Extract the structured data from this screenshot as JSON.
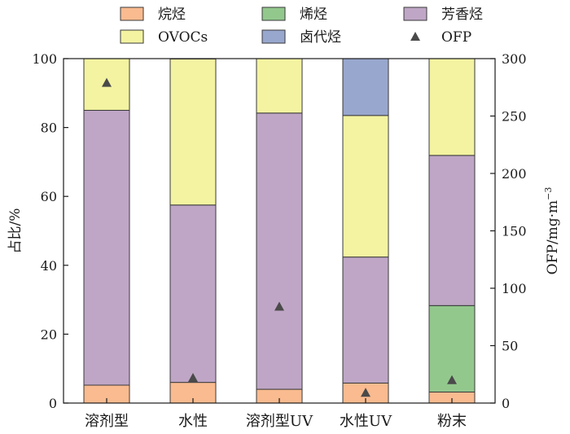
{
  "chart_data": {
    "type": "bar",
    "stacked": true,
    "categories": [
      "溶剂型",
      "水性",
      "溶剂型UV",
      "水性UV",
      "粉末"
    ],
    "series": [
      {
        "name": "烷烃",
        "color": "#f9bb8f",
        "values": [
          5.2,
          6.0,
          4.0,
          5.8,
          3.2
        ]
      },
      {
        "name": "烯烃",
        "color": "#93c88d",
        "values": [
          0,
          0,
          0,
          0,
          25.1
        ]
      },
      {
        "name": "芳香烃",
        "color": "#bfa6c6",
        "values": [
          79.8,
          51.5,
          80.2,
          36.6,
          43.6
        ]
      },
      {
        "name": "OVOCs",
        "color": "#f3f3a1",
        "values": [
          15.0,
          42.4,
          15.8,
          41.1,
          28.1
        ]
      },
      {
        "name": "卤代烃",
        "color": "#98a7cd",
        "values": [
          0,
          0,
          0,
          16.5,
          0
        ]
      }
    ],
    "ofp_series": {
      "name": "OFP",
      "marker": "triangle",
      "color": "#4a4a4a",
      "values": [
        279,
        22,
        84,
        9,
        20
      ]
    },
    "ylabel": "占比/%",
    "ylim": [
      0,
      100
    ],
    "yticks": [
      0,
      20,
      40,
      60,
      80,
      100
    ],
    "y2label": "OFP/mg·m",
    "y2label_sup": "−3",
    "y2lim": [
      0,
      300
    ],
    "y2ticks": [
      0,
      50,
      100,
      150,
      200,
      250,
      300
    ],
    "grid": false,
    "legend_position": "top",
    "legend_order": [
      "烷烃",
      "烯烃",
      "芳香烃",
      "OVOCs",
      "卤代烃",
      "OFP"
    ]
  }
}
